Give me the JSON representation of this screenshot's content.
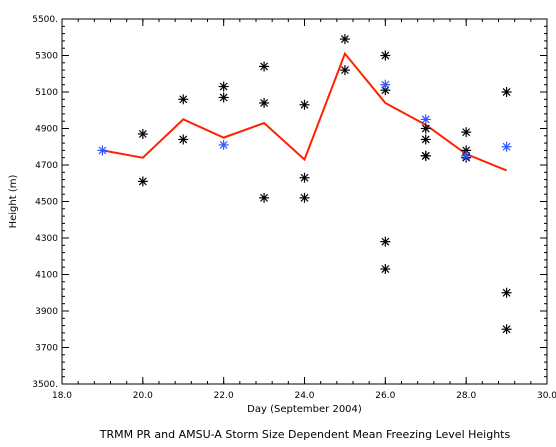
{
  "chart_data": {
    "type": "scatter",
    "title": "TRMM PR and AMSU-A Storm Size Dependent Mean Freezing Level Heights",
    "xlabel": "Day (September 2004)",
    "ylabel": "Height (m)",
    "xlim": [
      18.0,
      30.0
    ],
    "ylim": [
      3500,
      5500
    ],
    "x_ticks": [
      "18.0",
      "20.0",
      "22.0",
      "24.0",
      "26.0",
      "28.0",
      "30.0"
    ],
    "x_tick_values": [
      18,
      20,
      22,
      24,
      26,
      28,
      30
    ],
    "y_ticks": [
      "3500.",
      "3700",
      "3900",
      "4100",
      "4300",
      "4500",
      "4700",
      "4900",
      "5100",
      "5300",
      "5500."
    ],
    "y_tick_values": [
      3500,
      3700,
      3900,
      4100,
      4300,
      4500,
      4700,
      4900,
      5100,
      5300,
      5500
    ],
    "grid": false,
    "series": [
      {
        "kind": "markers",
        "marker": "asterisk",
        "color": "#000000",
        "points": [
          [
            20,
            4870
          ],
          [
            20,
            4610
          ],
          [
            21,
            5060
          ],
          [
            21,
            4840
          ],
          [
            22,
            5130
          ],
          [
            22,
            5070
          ],
          [
            23,
            5240
          ],
          [
            23,
            5040
          ],
          [
            23,
            4520
          ],
          [
            24,
            5030
          ],
          [
            24,
            4630
          ],
          [
            24,
            4520
          ],
          [
            25,
            5390
          ],
          [
            25,
            5220
          ],
          [
            26,
            5300
          ],
          [
            26,
            5110
          ],
          [
            26,
            4280
          ],
          [
            26,
            4130
          ],
          [
            27,
            4900
          ],
          [
            27,
            4840
          ],
          [
            27,
            4750
          ],
          [
            27,
            4750
          ],
          [
            28,
            4880
          ],
          [
            28,
            4780
          ],
          [
            28,
            4740
          ],
          [
            29,
            5100
          ],
          [
            29,
            4000
          ],
          [
            29,
            3800
          ]
        ]
      },
      {
        "kind": "markers",
        "marker": "asterisk",
        "color": "#3355ff",
        "points": [
          [
            19,
            4780
          ],
          [
            22,
            4810
          ],
          [
            26,
            5140
          ],
          [
            27,
            4950
          ],
          [
            28,
            4750
          ],
          [
            29,
            4800
          ]
        ]
      },
      {
        "kind": "line",
        "color": "#ff2200",
        "x": [
          19,
          20,
          21,
          22,
          23,
          24,
          25,
          26,
          27,
          28,
          29
        ],
        "y": [
          4780,
          4740,
          4950,
          4850,
          4930,
          4730,
          5310,
          5040,
          4920,
          4760,
          4670
        ]
      }
    ]
  }
}
